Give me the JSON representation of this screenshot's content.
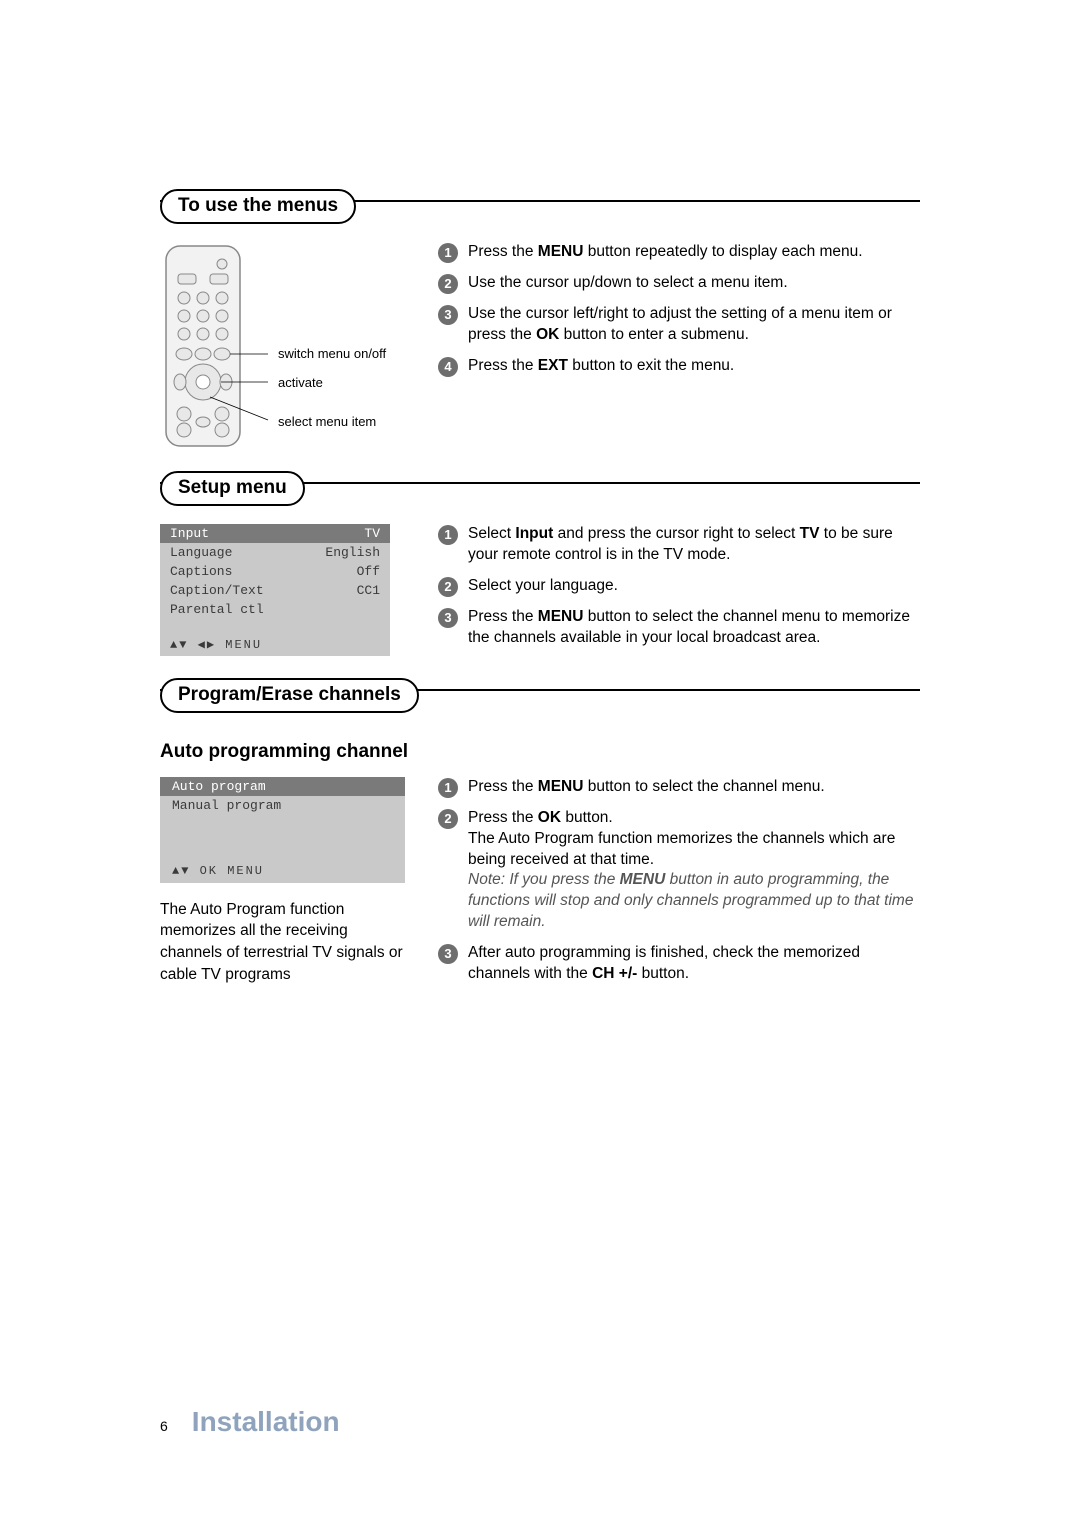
{
  "colors": {
    "bullet_bg": "#6e6e6e",
    "osd_bg": "#c9c9c9",
    "osd_sel_bg": "#7a7a7a",
    "footer_color": "#8fa3bd",
    "note_color": "#555555"
  },
  "section1": {
    "title": "To use the menus",
    "remote_labels": {
      "l1": "switch menu on/off",
      "l2": "activate",
      "l3": "select menu item"
    },
    "steps": [
      {
        "n": "1",
        "html": "Press the <b>MENU</b> button repeatedly to display each menu."
      },
      {
        "n": "2",
        "html": "Use the cursor up/down to select a menu item."
      },
      {
        "n": "3",
        "html": "Use the cursor left/right to adjust the setting of a menu item or press the <b>OK</b> button to enter a submenu."
      },
      {
        "n": "4",
        "html": "Press the <b>EXT</b> button to exit the menu."
      }
    ]
  },
  "section2": {
    "title": "Setup menu",
    "osd": {
      "rows": [
        {
          "k": "Input",
          "v": "TV",
          "sel": true
        },
        {
          "k": "Language",
          "v": "English"
        },
        {
          "k": "Captions",
          "v": "Off"
        },
        {
          "k": "Caption/Text",
          "v": "CC1"
        },
        {
          "k": "Parental ctl",
          "v": ""
        }
      ],
      "footer": "▲▼ ◀▶  MENU"
    },
    "steps": [
      {
        "n": "1",
        "html": "Select <b>Input</b> and press the cursor right to select <b>TV</b> to be sure your remote control is in the TV mode."
      },
      {
        "n": "2",
        "html": "Select your language."
      },
      {
        "n": "3",
        "html": "Press the <b>MENU</b> button to select the channel menu to memorize the channels available in your local broadcast area."
      }
    ]
  },
  "section3": {
    "title": "Program/Erase channels",
    "subheading": "Auto programming channel",
    "osd": {
      "rows": [
        {
          "k": "Auto program",
          "sel": true
        },
        {
          "k": "Manual program"
        }
      ],
      "footer": "▲▼ OK MENU"
    },
    "caption": "The Auto Program function memorizes all the receiving channels of terrestrial TV signals or cable TV programs",
    "steps": [
      {
        "n": "1",
        "html": "Press the <b>MENU</b> button to select the channel menu."
      },
      {
        "n": "2",
        "html": "Press the <b>OK</b> button.<br>The Auto Program function memorizes the channels which are being received at that time.<br><span class=\"note\">Note: If you press the <b>MENU</b> button in auto programming, the functions will stop and only channels programmed up to that time will remain.</span>"
      },
      {
        "n": "3",
        "html": "After auto programming is finished, check the memorized channels with the <b>CH +/-</b> button."
      }
    ]
  },
  "footer": {
    "page_num": "6",
    "section_name": "Installation"
  }
}
